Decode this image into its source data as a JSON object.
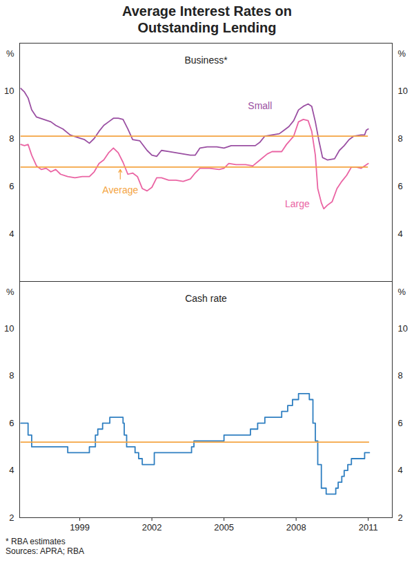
{
  "chart_data": [
    {
      "type": "line",
      "title": "Average Interest Rates on Outstanding Lending",
      "subtitle": "Business*",
      "ylabel": "%",
      "xlim": [
        1996.5,
        2012
      ],
      "ylim": [
        2,
        12
      ],
      "yticks": [
        4,
        6,
        8,
        10
      ],
      "tick_labels": "y",
      "series": [
        {
          "name": "Small",
          "color": "#9a4fa2",
          "x": [
            1996.55,
            1996.7,
            1996.85,
            1997.0,
            1997.2,
            1997.5,
            1997.8,
            1998.0,
            1998.3,
            1998.6,
            1998.9,
            1999.2,
            1999.4,
            1999.6,
            1999.8,
            2000.0,
            2000.2,
            2000.4,
            2000.6,
            2000.8,
            2001.0,
            2001.2,
            2001.5,
            2001.8,
            2002.0,
            2002.2,
            2002.4,
            2002.7,
            2003.0,
            2003.3,
            2003.6,
            2003.8,
            2004.0,
            2004.3,
            2004.7,
            2005.0,
            2005.3,
            2005.7,
            2006.0,
            2006.3,
            2006.5,
            2006.7,
            2007.0,
            2007.3,
            2007.5,
            2007.7,
            2007.9,
            2008.1,
            2008.3,
            2008.5,
            2008.65,
            2008.8,
            2008.95,
            2009.1,
            2009.3,
            2009.6,
            2009.8,
            2010.0,
            2010.2,
            2010.4,
            2010.7,
            2010.85,
            2010.92,
            2011.0
          ],
          "values": [
            10.1,
            9.95,
            9.7,
            9.2,
            8.9,
            8.8,
            8.7,
            8.55,
            8.4,
            8.15,
            8.05,
            7.95,
            7.8,
            8.0,
            8.3,
            8.55,
            8.7,
            8.85,
            8.85,
            8.8,
            8.4,
            7.95,
            7.9,
            7.5,
            7.3,
            7.25,
            7.5,
            7.45,
            7.4,
            7.35,
            7.3,
            7.3,
            7.6,
            7.65,
            7.65,
            7.6,
            7.7,
            7.7,
            7.7,
            7.7,
            7.85,
            8.1,
            8.15,
            8.2,
            8.35,
            8.5,
            8.75,
            9.2,
            9.35,
            9.45,
            9.35,
            8.7,
            7.9,
            7.2,
            7.1,
            7.15,
            7.5,
            7.7,
            7.95,
            8.1,
            8.15,
            8.15,
            8.35,
            8.4
          ]
        },
        {
          "name": "Large",
          "color": "#ea64a3",
          "x": [
            1996.55,
            1996.7,
            1996.85,
            1997.0,
            1997.2,
            1997.4,
            1997.6,
            1997.8,
            1998.0,
            1998.2,
            1998.5,
            1998.8,
            1999.1,
            1999.4,
            1999.6,
            1999.8,
            2000.0,
            2000.2,
            2000.4,
            2000.6,
            2000.8,
            2001.0,
            2001.2,
            2001.4,
            2001.6,
            2001.8,
            2002.0,
            2002.2,
            2002.4,
            2002.7,
            2003.0,
            2003.3,
            2003.6,
            2003.8,
            2004.0,
            2004.4,
            2004.8,
            2005.0,
            2005.2,
            2005.5,
            2005.9,
            2006.2,
            2006.5,
            2006.8,
            2007.0,
            2007.4,
            2007.6,
            2007.9,
            2008.1,
            2008.3,
            2008.5,
            2008.65,
            2008.8,
            2008.9,
            2009.05,
            2009.15,
            2009.3,
            2009.5,
            2009.7,
            2009.9,
            2010.1,
            2010.3,
            2010.5,
            2010.7,
            2010.85,
            2011.0
          ],
          "values": [
            7.75,
            7.7,
            7.75,
            7.3,
            6.85,
            6.7,
            6.75,
            6.6,
            6.7,
            6.5,
            6.4,
            6.35,
            6.4,
            6.4,
            6.6,
            6.95,
            7.1,
            7.4,
            7.6,
            7.4,
            7.0,
            6.5,
            6.55,
            6.4,
            5.9,
            5.8,
            5.95,
            6.35,
            6.35,
            6.25,
            6.25,
            6.2,
            6.3,
            6.55,
            6.75,
            6.75,
            6.7,
            6.75,
            6.95,
            6.9,
            6.9,
            6.85,
            7.1,
            7.35,
            7.45,
            7.45,
            7.75,
            8.1,
            8.7,
            8.8,
            8.75,
            8.3,
            7.3,
            5.9,
            5.3,
            5.05,
            5.2,
            5.35,
            5.9,
            6.2,
            6.45,
            6.8,
            6.8,
            6.75,
            6.85,
            6.95
          ]
        }
      ],
      "averages": {
        "name": "Average",
        "color": "#f4a442",
        "values": [
          8.1,
          6.8
        ]
      }
    },
    {
      "type": "line",
      "subtitle": "Cash rate",
      "ylabel": "%",
      "xlim": [
        1996.5,
        2012
      ],
      "xticks": [
        1999,
        2002,
        2005,
        2008,
        2011
      ],
      "ylim": [
        2,
        12
      ],
      "yticks": [
        2,
        4,
        6,
        8,
        10
      ],
      "series": [
        {
          "color": "#2f7fc1",
          "line_style": "step",
          "x": [
            1996.55,
            1996.85,
            1997.0,
            1998.5,
            1999.4,
            1999.65,
            1999.75,
            1999.95,
            2000.25,
            2000.8,
            2000.85,
            2000.95,
            2001.3,
            2001.45,
            2001.6,
            2002.1,
            2003.65,
            2003.75,
            2005.0,
            2006.1,
            2006.4,
            2006.7,
            2007.4,
            2007.65,
            2007.85,
            2008.1,
            2008.55,
            2008.7,
            2008.8,
            2008.9,
            2009.05,
            2009.25,
            2009.65,
            2009.75,
            2009.9,
            2010.0,
            2010.15,
            2010.3,
            2010.85,
            2011.05
          ],
          "values": [
            6.0,
            5.5,
            5.0,
            4.75,
            5.0,
            5.5,
            5.75,
            6.0,
            6.25,
            6.0,
            5.5,
            5.0,
            4.75,
            4.5,
            4.25,
            4.75,
            5.0,
            5.25,
            5.5,
            5.75,
            6.0,
            6.25,
            6.5,
            6.75,
            7.0,
            7.25,
            7.0,
            6.0,
            5.25,
            4.25,
            3.25,
            3.0,
            3.25,
            3.5,
            3.75,
            4.0,
            4.25,
            4.5,
            4.75,
            4.75
          ]
        }
      ],
      "averages": {
        "color": "#f4a442",
        "values": [
          5.2
        ]
      }
    }
  ],
  "notes": [
    "* RBA estimates",
    "Sources: APRA; RBA"
  ]
}
